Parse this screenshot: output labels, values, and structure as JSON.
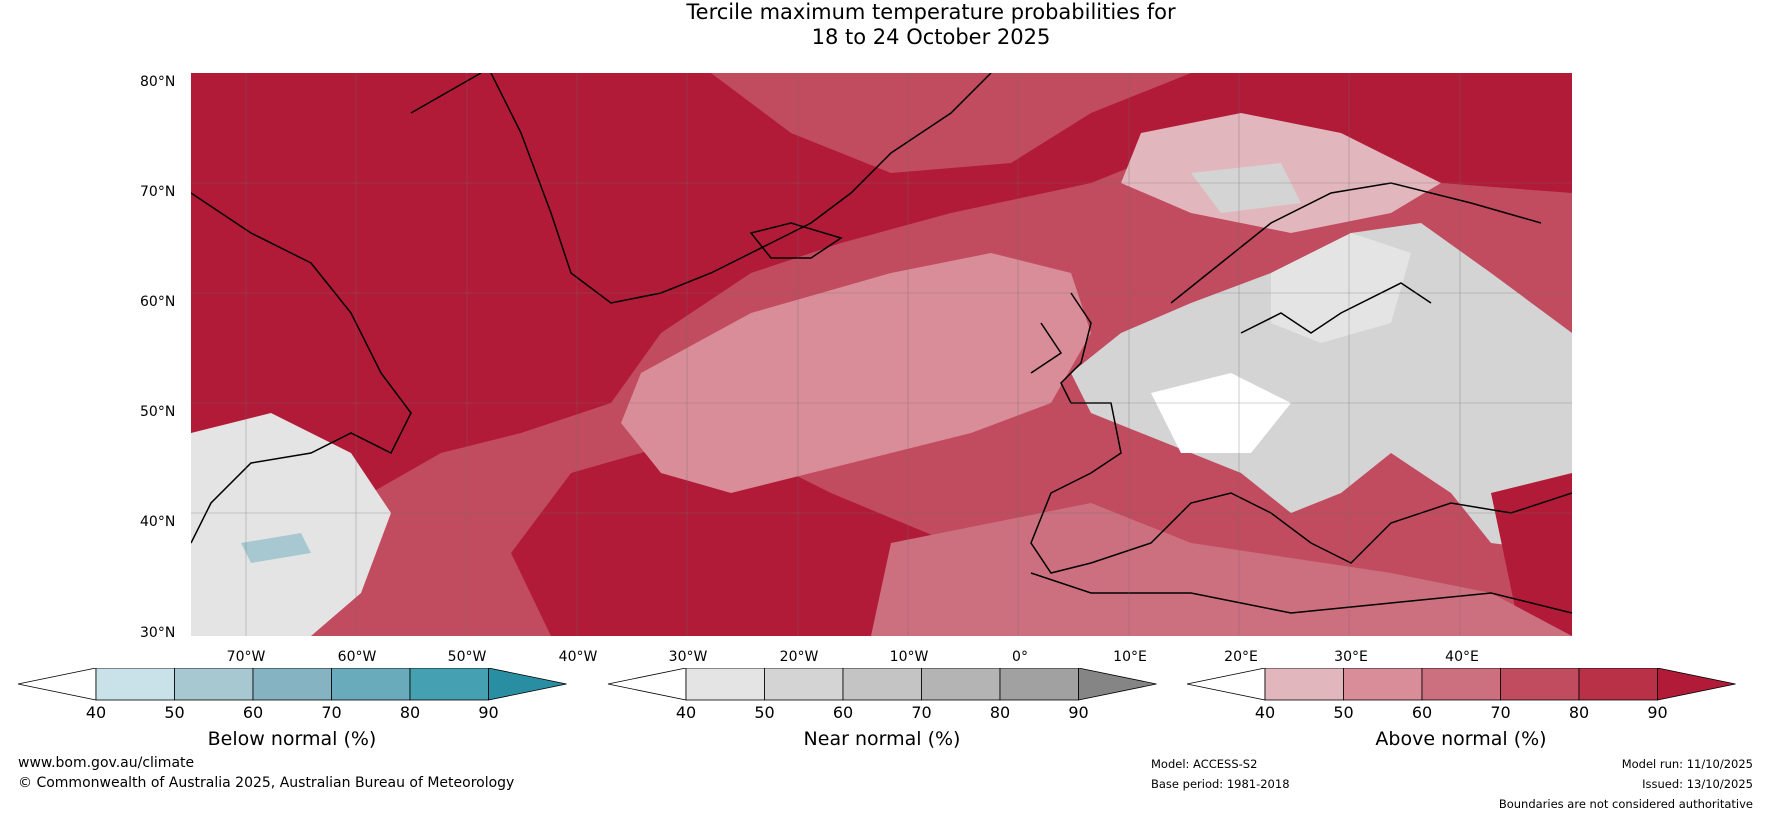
{
  "title": {
    "line1": "Tercile maximum temperature probabilities for",
    "line2": "18 to 24 October 2025"
  },
  "map": {
    "lat_labels": [
      "80°N",
      "70°N",
      "60°N",
      "50°N",
      "40°N",
      "30°N"
    ],
    "lon_labels": [
      "70°W",
      "60°W",
      "50°W",
      "40°W",
      "30°W",
      "20°W",
      "10°W",
      "0°",
      "10°E",
      "20°E",
      "30°E",
      "40°E"
    ]
  },
  "colorbars": [
    {
      "label": "Below normal (%)",
      "ticks": [
        "40",
        "50",
        "60",
        "70",
        "80",
        "90"
      ],
      "colors": [
        "#ffffff",
        "#c9e2ea",
        "#a8c8d1",
        "#86b3c1",
        "#69abbb",
        "#45a0b2",
        "#2a8ea3"
      ]
    },
    {
      "label": "Near normal (%)",
      "ticks": [
        "40",
        "50",
        "60",
        "70",
        "80",
        "90"
      ],
      "colors": [
        "#ffffff",
        "#e4e4e4",
        "#d4d4d4",
        "#c4c4c4",
        "#b4b4b4",
        "#a1a1a1",
        "#858585"
      ]
    },
    {
      "label": "Above normal (%)",
      "ticks": [
        "40",
        "50",
        "60",
        "70",
        "80",
        "90"
      ],
      "colors": [
        "#ffffff",
        "#e2b6bd",
        "#d88d99",
        "#cc7080",
        "#c24c5f",
        "#b83146",
        "#b21b38"
      ]
    }
  ],
  "footer": {
    "website": "www.bom.gov.au/climate",
    "copyright": "© Commonwealth of Australia 2025, Australian Bureau of Meteorology",
    "model": "Model: ACCESS-S2",
    "base_period": "Base period: 1981-2018",
    "model_run": "Model run: 11/10/2025",
    "issued": "Issued: 13/10/2025",
    "disclaimer": "Boundaries are not considered authoritative"
  }
}
